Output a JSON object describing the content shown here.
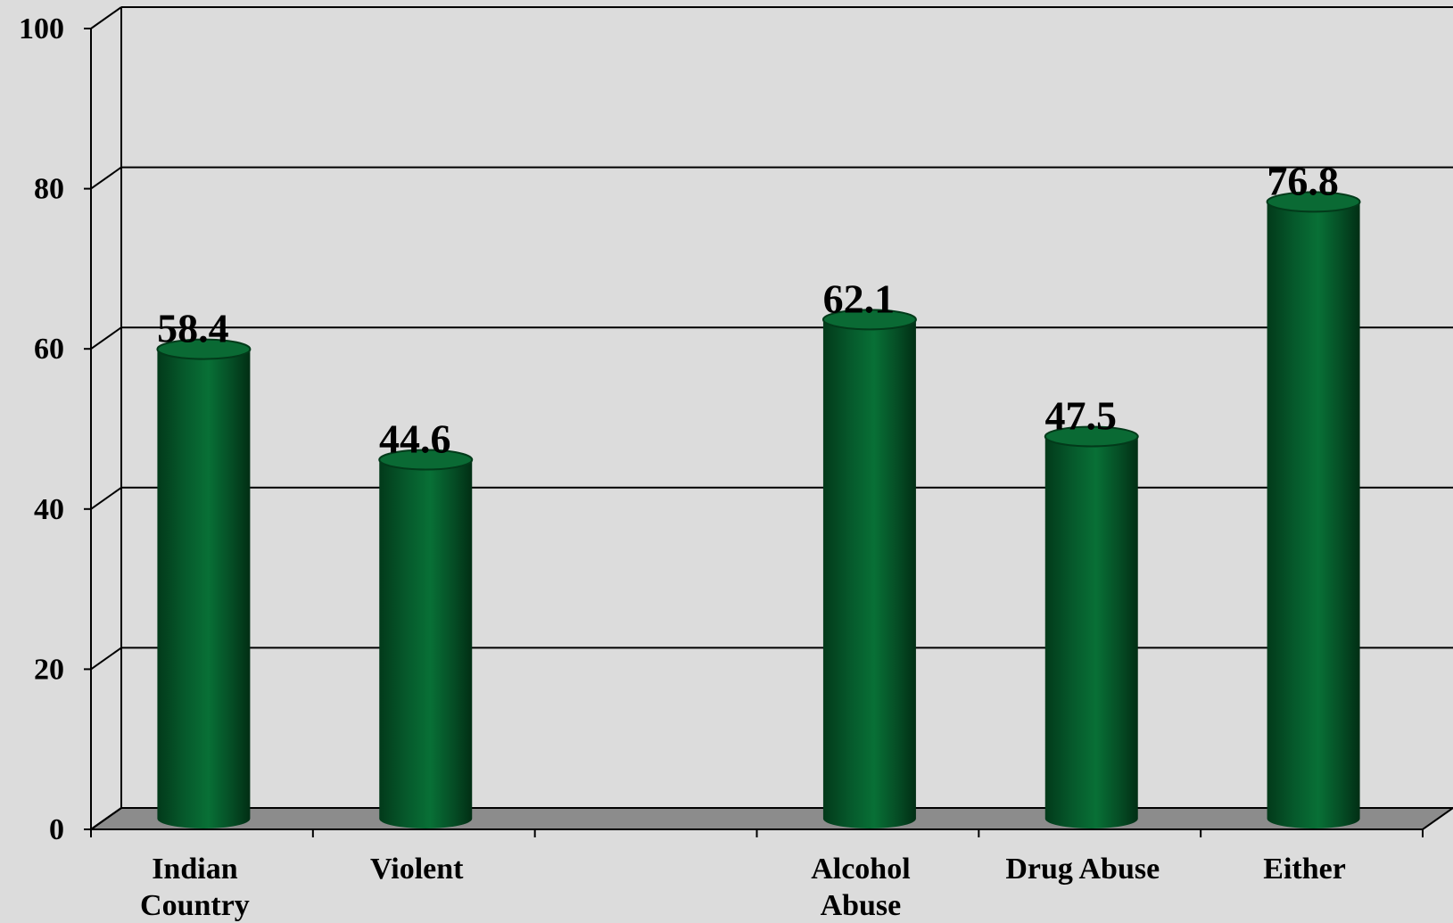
{
  "chart_data": {
    "type": "bar",
    "style": "3d-cylinder",
    "categories": [
      "Indian Country",
      "Violent",
      "",
      "Alcohol Abuse",
      "Drug Abuse",
      "Either"
    ],
    "category_lines": [
      [
        "Indian",
        "Country"
      ],
      [
        "Violent"
      ],
      [],
      [
        "Alcohol",
        "Abuse"
      ],
      [
        "Drug Abuse"
      ],
      [
        "Either"
      ]
    ],
    "values": [
      58.4,
      44.6,
      null,
      62.1,
      47.5,
      76.8
    ],
    "value_labels": [
      "58.4",
      "44.6",
      "",
      "62.1",
      "47.5",
      "76.8"
    ],
    "ylim": [
      0,
      100
    ],
    "yticks": [
      0,
      20,
      40,
      60,
      80,
      100
    ],
    "ytick_labels": [
      "0",
      "20",
      "40",
      "60",
      "80",
      "100"
    ],
    "grid": true,
    "legend": "none",
    "title": "",
    "xlabel": "",
    "ylabel": "",
    "colors": {
      "background": "#dcdcdc",
      "floor": "#8c8c8c",
      "bar": "#065a2c",
      "bar_dark": "#023a1a",
      "bar_top": "#0a6a34",
      "grid": "#000000"
    }
  }
}
